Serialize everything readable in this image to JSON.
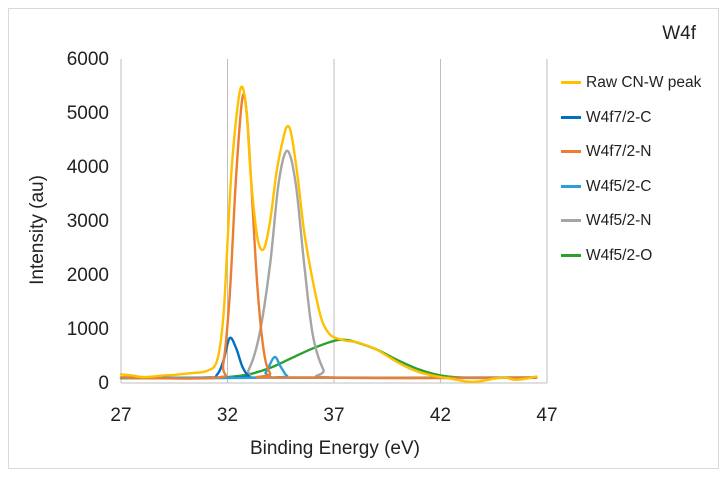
{
  "chart_data": {
    "type": "line",
    "panel_label": "W4f",
    "xlabel": "Binding Energy (eV)",
    "ylabel": "Intensity (au)",
    "xlim": [
      27,
      47
    ],
    "ylim": [
      0,
      6000
    ],
    "x_ticks": [
      27,
      32,
      37,
      42,
      47
    ],
    "y_ticks": [
      0,
      1000,
      2000,
      3000,
      4000,
      5000,
      6000
    ],
    "grid": "vertical major gridlines",
    "legend_position": "right",
    "series": [
      {
        "name": "Raw CN-W peak",
        "color": "#ffc000",
        "points": [
          [
            27,
            160
          ],
          [
            27.5,
            140
          ],
          [
            28,
            110
          ],
          [
            28.5,
            120
          ],
          [
            29,
            140
          ],
          [
            29.5,
            150
          ],
          [
            30,
            170
          ],
          [
            30.5,
            190
          ],
          [
            31,
            220
          ],
          [
            31.5,
            400
          ],
          [
            31.8,
            1200
          ],
          [
            32,
            2600
          ],
          [
            32.2,
            4000
          ],
          [
            32.5,
            5200
          ],
          [
            32.7,
            5480
          ],
          [
            32.9,
            5000
          ],
          [
            33.1,
            3800
          ],
          [
            33.4,
            2700
          ],
          [
            33.7,
            2480
          ],
          [
            34,
            3000
          ],
          [
            34.3,
            3900
          ],
          [
            34.6,
            4500
          ],
          [
            34.8,
            4750
          ],
          [
            35,
            4600
          ],
          [
            35.3,
            3800
          ],
          [
            35.6,
            2800
          ],
          [
            36,
            1900
          ],
          [
            36.4,
            1200
          ],
          [
            36.8,
            900
          ],
          [
            37.2,
            820
          ],
          [
            37.6,
            780
          ],
          [
            38,
            760
          ],
          [
            38.5,
            700
          ],
          [
            39,
            620
          ],
          [
            39.5,
            500
          ],
          [
            40,
            380
          ],
          [
            40.5,
            280
          ],
          [
            41,
            200
          ],
          [
            41.5,
            150
          ],
          [
            42,
            110
          ],
          [
            42.5,
            80
          ],
          [
            43,
            40
          ],
          [
            43.5,
            20
          ],
          [
            44,
            40
          ],
          [
            44.5,
            80
          ],
          [
            45,
            100
          ],
          [
            45.5,
            60
          ],
          [
            46,
            80
          ],
          [
            46.5,
            120
          ]
        ]
      },
      {
        "name": "W4f7/2-C",
        "color": "#0070c0",
        "points": [
          [
            27,
            100
          ],
          [
            31,
            100
          ],
          [
            31.5,
            150
          ],
          [
            31.8,
            400
          ],
          [
            32.1,
            830
          ],
          [
            32.4,
            650
          ],
          [
            32.7,
            300
          ],
          [
            33,
            130
          ],
          [
            33.4,
            100
          ],
          [
            46.5,
            100
          ]
        ]
      },
      {
        "name": "W4f7/2-N",
        "color": "#ed7d31",
        "points": [
          [
            27,
            100
          ],
          [
            31.5,
            100
          ],
          [
            31.8,
            350
          ],
          [
            32.1,
            1600
          ],
          [
            32.4,
            3800
          ],
          [
            32.7,
            5280
          ],
          [
            32.9,
            5000
          ],
          [
            33.1,
            3800
          ],
          [
            33.4,
            1800
          ],
          [
            33.7,
            600
          ],
          [
            34,
            180
          ],
          [
            34.4,
            100
          ],
          [
            46.5,
            100
          ]
        ]
      },
      {
        "name": "W4f5/2-C",
        "color": "#2e9fd6",
        "points": [
          [
            27,
            100
          ],
          [
            33.4,
            100
          ],
          [
            33.8,
            200
          ],
          [
            34.2,
            480
          ],
          [
            34.5,
            300
          ],
          [
            34.8,
            130
          ],
          [
            35.2,
            100
          ],
          [
            46.5,
            100
          ]
        ]
      },
      {
        "name": "W4f5/2-N",
        "color": "#a5a5a5",
        "points": [
          [
            27,
            100
          ],
          [
            32.5,
            100
          ],
          [
            33,
            250
          ],
          [
            33.5,
            900
          ],
          [
            34,
            2200
          ],
          [
            34.4,
            3700
          ],
          [
            34.8,
            4300
          ],
          [
            35.2,
            3700
          ],
          [
            35.6,
            2200
          ],
          [
            36,
            900
          ],
          [
            36.5,
            250
          ],
          [
            37,
            100
          ],
          [
            46.5,
            100
          ]
        ]
      },
      {
        "name": "W4f5/2-O",
        "color": "#2ca02c",
        "points": [
          [
            27,
            90
          ],
          [
            31,
            90
          ],
          [
            32,
            110
          ],
          [
            33,
            160
          ],
          [
            34,
            280
          ],
          [
            35,
            460
          ],
          [
            36,
            640
          ],
          [
            37,
            780
          ],
          [
            37.5,
            800
          ],
          [
            38,
            760
          ],
          [
            39,
            620
          ],
          [
            40,
            420
          ],
          [
            41,
            250
          ],
          [
            42,
            140
          ],
          [
            43,
            100
          ],
          [
            44,
            95
          ],
          [
            46.5,
            100
          ]
        ]
      }
    ]
  }
}
